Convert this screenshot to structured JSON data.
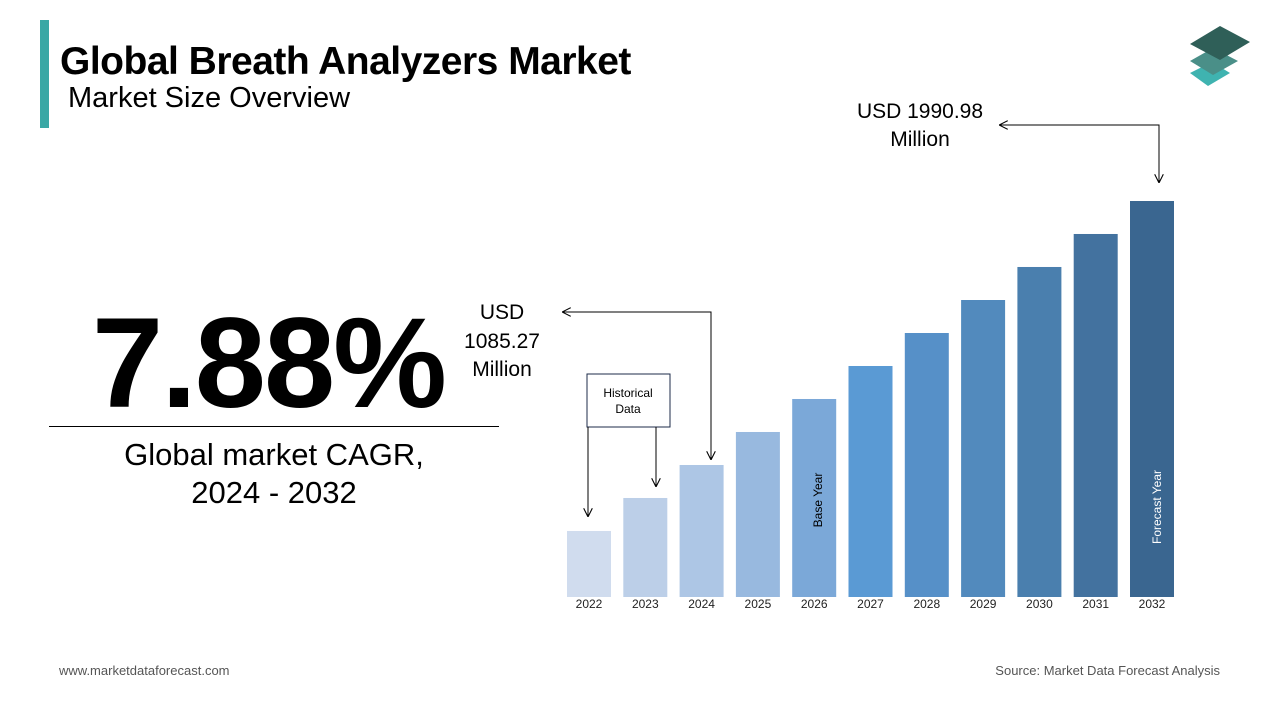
{
  "header": {
    "title": "Global Breath Analyzers Market",
    "subtitle": "Market Size Overview"
  },
  "kpi": {
    "cagr": "7.88%",
    "label_line1": "Global market CAGR,",
    "label_line2": "2024 - 2032"
  },
  "footer": {
    "website": "www.marketdataforecast.com",
    "source": "Source: Market Data Forecast Analysis"
  },
  "logo": {
    "icon": "stacked-layers-icon",
    "colors": [
      "#2f5f58",
      "#4a8f88",
      "#3fb3b0"
    ]
  },
  "chart_data": {
    "type": "bar",
    "categories": [
      "2022",
      "2023",
      "2024",
      "2025",
      "2026",
      "2027",
      "2028",
      "2029",
      "2030",
      "2031",
      "2032"
    ],
    "values": [
      858.9,
      972.1,
      1085.27,
      1198.5,
      1311.7,
      1424.9,
      1538.1,
      1651.3,
      1764.6,
      1877.8,
      1990.98
    ],
    "colors": [
      "#d0dcee",
      "#bccfe8",
      "#adc6e5",
      "#98b9df",
      "#7ba8d8",
      "#5a9ad4",
      "#5690c8",
      "#528abd",
      "#4a7fae",
      "#43729f",
      "#3a6690"
    ],
    "unit": "USD Million",
    "grid": false,
    "annotations": {
      "historical": "Historical Data",
      "base_year": "Base Year",
      "forecast_year": "Forecast Year",
      "value_2024": {
        "line1": "USD",
        "line2": "1085.27",
        "line3": "Million"
      },
      "value_2032": {
        "line1": "USD 1990.98",
        "line2": "Million"
      }
    }
  }
}
